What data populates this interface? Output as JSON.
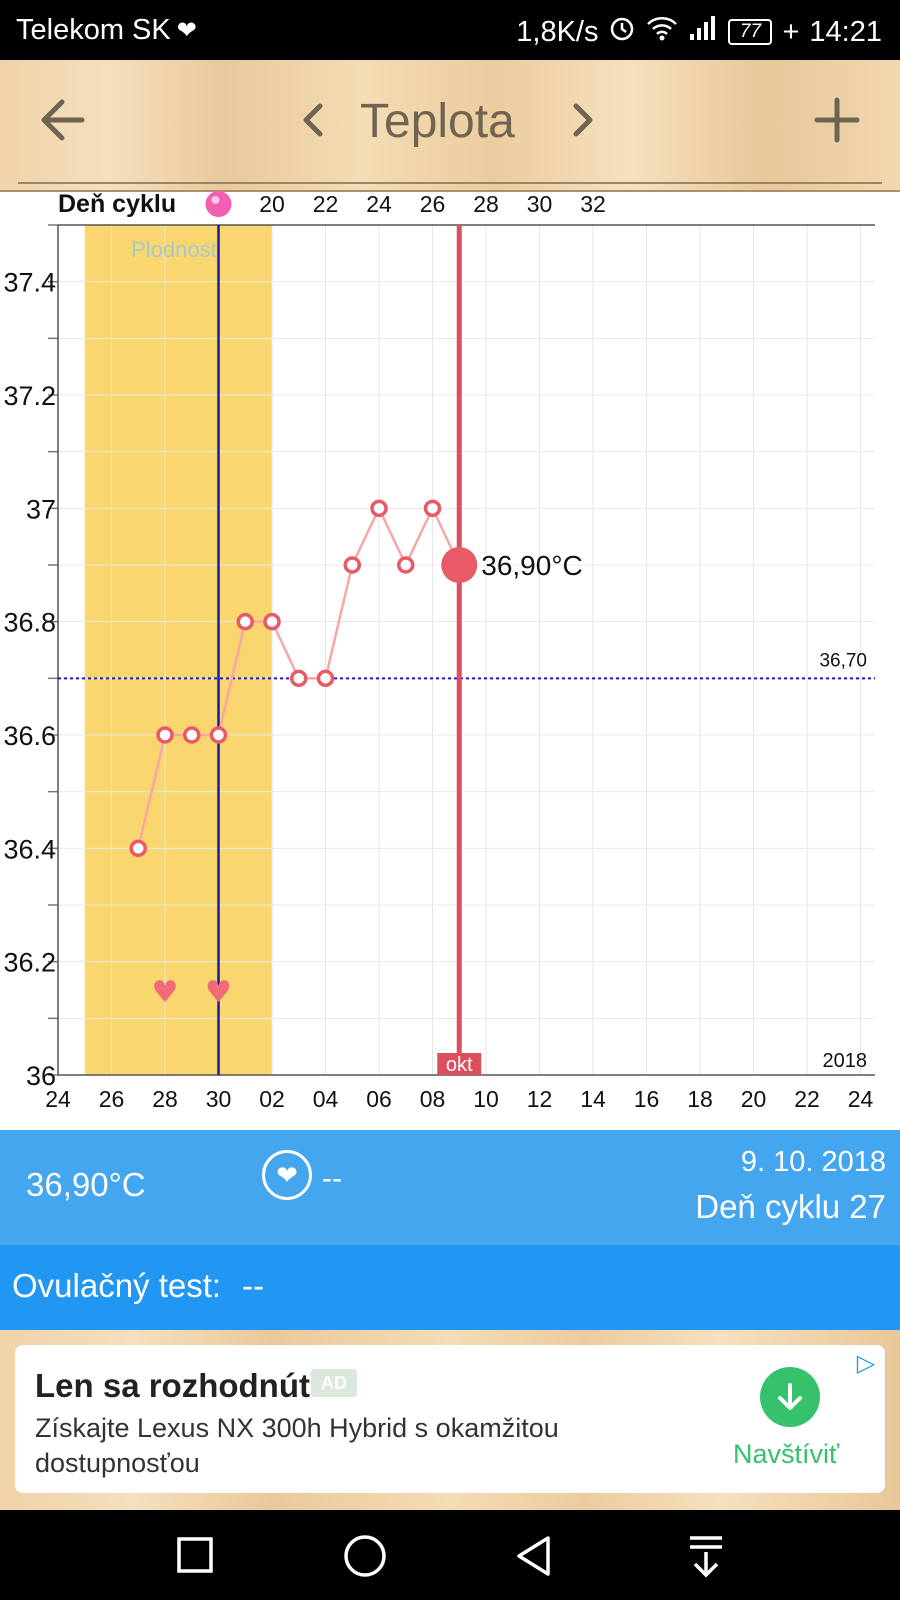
{
  "status_bar": {
    "carrier": "Telekom SK",
    "speed": "1,8K/s",
    "battery": "77",
    "time": "14:21"
  },
  "header": {
    "title": "Teplota",
    "icons": {
      "back": "arrow-left-icon",
      "prev": "chevron-left-icon",
      "next": "chevron-right-icon",
      "add": "plus-icon"
    }
  },
  "chart_data": {
    "type": "line",
    "cycle_axis_label": "Deň cyklu",
    "cycle_ticks": [
      "20",
      "22",
      "24",
      "26",
      "28",
      "30",
      "32"
    ],
    "date_ticks": [
      "24",
      "26",
      "28",
      "30",
      "02",
      "04",
      "06",
      "08",
      "10",
      "12",
      "14",
      "16",
      "18",
      "20",
      "22",
      "24"
    ],
    "y_ticks": [
      "37.4",
      "37.2",
      "37",
      "36.8",
      "36.6",
      "36.4",
      "36.2",
      "36"
    ],
    "ylim": [
      36,
      37.5
    ],
    "x": [
      "27",
      "28",
      "29",
      "30",
      "01",
      "02",
      "03",
      "04",
      "05",
      "06",
      "07",
      "08",
      "09"
    ],
    "values": [
      36.4,
      36.6,
      36.6,
      36.6,
      36.8,
      36.8,
      36.7,
      36.7,
      36.9,
      37.0,
      36.9,
      37.0,
      36.9
    ],
    "fertile_label": "Plodnosť",
    "baseline_value": 36.7,
    "baseline_label": "36,70",
    "current_label": "36,90°C",
    "month_label": "okt",
    "year_label": "2018",
    "hearts_at": [
      "28",
      "30"
    ],
    "colors": {
      "line": "#f7a7a7",
      "marker": "#e85a66",
      "fertile": "#fad76e",
      "today_line": "#dc4f5d",
      "ovulation_line": "#1a1aa8",
      "baseline": "#1a1ac8",
      "heart": "#f06a78"
    }
  },
  "info": {
    "temperature": "36,90°C",
    "heart_value": "--",
    "date": "9. 10. 2018",
    "cycle_day": "Deň cyklu 27",
    "ovulation_label": "Ovulačný test:",
    "ovulation_value": "--"
  },
  "ad": {
    "title": "Len sa rozhodnúť",
    "badge": "AD",
    "text": "Získajte Lexus NX 300h Hybrid s okamžitou dostupnosťou",
    "cta": "Navštíviť"
  }
}
